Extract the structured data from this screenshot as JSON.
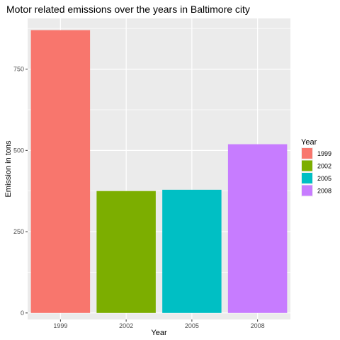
{
  "chart_data": {
    "type": "bar",
    "title": "Motor related emissions over the years in Baltimore city",
    "xlabel": "Year",
    "ylabel": "Emission in tons",
    "categories": [
      "1999",
      "2002",
      "2005",
      "2008"
    ],
    "values": [
      870,
      375,
      379,
      519
    ],
    "ylim": [
      -20,
      906
    ],
    "yticks": [
      0,
      250,
      500,
      750
    ],
    "grid": true,
    "legend": {
      "title": "Year",
      "placement": "right",
      "entries": [
        "1999",
        "2002",
        "2005",
        "2008"
      ]
    },
    "colors": [
      "#F8766D",
      "#7CAE00",
      "#00BFC4",
      "#C77CFF"
    ],
    "panel_background": "#EBEBEB",
    "grid_color": "#FFFFFF"
  }
}
